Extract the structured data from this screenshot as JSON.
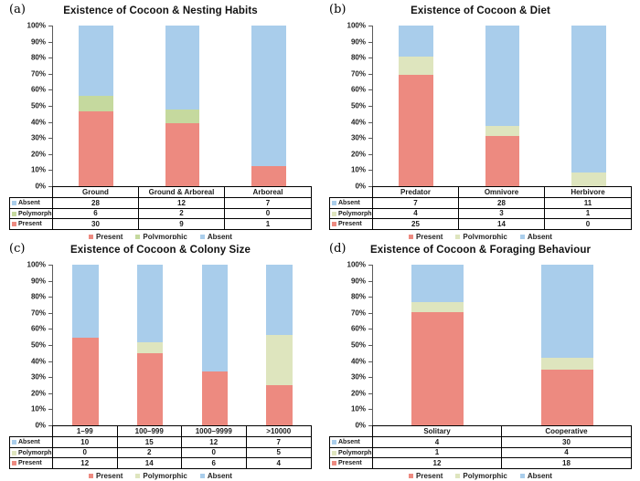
{
  "figure": {
    "background": "#ffffff",
    "series_names": [
      "Present",
      "Polymorphic",
      "Absent"
    ],
    "table_row_order": [
      "Absent",
      "Polymorphic",
      "Present"
    ],
    "y_axis_ticks": [
      "100%",
      "90%",
      "80%",
      "70%",
      "60%",
      "50%",
      "40%",
      "30%",
      "20%",
      "10%",
      "0%"
    ]
  },
  "colors": {
    "present": "#ED8A80",
    "absent": "#A9CDEB",
    "polymorphic_panel_a": "#C5D99E",
    "polymorphic_pale": "#DEE5BE",
    "axis_line": "#5a5a5a",
    "table_border": "#000000"
  },
  "chart_data": [
    {
      "type": "bar",
      "stacked": true,
      "percent_normalized": true,
      "panel_letter": "(a)",
      "title": "Existence of Cocoon & Nesting Habits",
      "categories": [
        "Ground",
        "Ground & Arboreal",
        "Arboreal"
      ],
      "series": [
        {
          "name": "Present",
          "values": [
            30,
            9,
            1
          ],
          "color": "#ED8A80"
        },
        {
          "name": "Polymorphic",
          "values": [
            6,
            2,
            0
          ],
          "color": "#C5D99E"
        },
        {
          "name": "Absent",
          "values": [
            28,
            12,
            7
          ],
          "color": "#A9CDEB"
        }
      ],
      "ylim": [
        0,
        100
      ],
      "yticks": [
        "0%",
        "10%",
        "20%",
        "30%",
        "40%",
        "50%",
        "60%",
        "70%",
        "80%",
        "90%",
        "100%"
      ],
      "legend_position": "bottom",
      "grid": false
    },
    {
      "type": "bar",
      "stacked": true,
      "percent_normalized": true,
      "panel_letter": "(b)",
      "title": "Existence of Cocoon & Diet",
      "categories": [
        "Predator",
        "Omnivore",
        "Herbivore"
      ],
      "series": [
        {
          "name": "Present",
          "values": [
            25,
            14,
            0
          ],
          "color": "#ED8A80"
        },
        {
          "name": "Polymorphic",
          "values": [
            4,
            3,
            1
          ],
          "color": "#DEE5BE"
        },
        {
          "name": "Absent",
          "values": [
            7,
            28,
            11
          ],
          "color": "#A9CDEB"
        }
      ],
      "ylim": [
        0,
        100
      ],
      "yticks": [
        "0%",
        "10%",
        "20%",
        "30%",
        "40%",
        "50%",
        "60%",
        "70%",
        "80%",
        "90%",
        "100%"
      ],
      "legend_position": "bottom",
      "grid": false
    },
    {
      "type": "bar",
      "stacked": true,
      "percent_normalized": true,
      "panel_letter": "(c)",
      "title": "Existence of Cocoon & Colony Size",
      "categories": [
        "1–99",
        "100–999",
        "1000–9999",
        ">10000"
      ],
      "series": [
        {
          "name": "Present",
          "values": [
            12,
            14,
            6,
            4
          ],
          "color": "#ED8A80"
        },
        {
          "name": "Polymorphic",
          "values": [
            0,
            2,
            0,
            5
          ],
          "color": "#DEE5BE"
        },
        {
          "name": "Absent",
          "values": [
            10,
            15,
            12,
            7
          ],
          "color": "#A9CDEB"
        }
      ],
      "ylim": [
        0,
        100
      ],
      "yticks": [
        "0%",
        "10%",
        "20%",
        "30%",
        "40%",
        "50%",
        "60%",
        "70%",
        "80%",
        "90%",
        "100%"
      ],
      "legend_position": "bottom",
      "grid": false
    },
    {
      "type": "bar",
      "stacked": true,
      "percent_normalized": true,
      "panel_letter": "(d)",
      "title": "Existence of Cocoon & Foraging Behaviour",
      "categories": [
        "Solitary",
        "Cooperative"
      ],
      "series": [
        {
          "name": "Present",
          "values": [
            12,
            18
          ],
          "color": "#ED8A80"
        },
        {
          "name": "Polymorphic",
          "values": [
            1,
            4
          ],
          "color": "#DEE5BE"
        },
        {
          "name": "Absent",
          "values": [
            4,
            30
          ],
          "color": "#A9CDEB"
        }
      ],
      "ylim": [
        0,
        100
      ],
      "yticks": [
        "0%",
        "10%",
        "20%",
        "30%",
        "40%",
        "50%",
        "60%",
        "70%",
        "80%",
        "90%",
        "100%"
      ],
      "legend_position": "bottom",
      "grid": false
    }
  ]
}
